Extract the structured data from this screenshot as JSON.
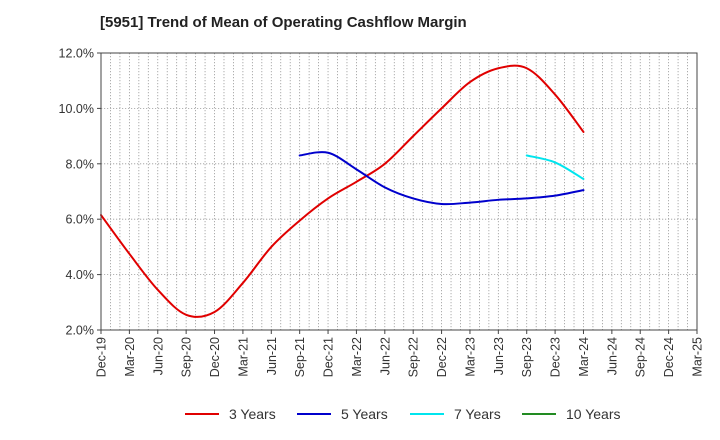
{
  "title": "[5951]  Trend of Mean of Operating Cashflow Margin",
  "chart_data": {
    "type": "line",
    "title": "[5951]  Trend of Mean of Operating Cashflow Margin",
    "xlabel": "",
    "ylabel": "",
    "categories": [
      "Dec-19",
      "Mar-20",
      "Jun-20",
      "Sep-20",
      "Dec-20",
      "Mar-21",
      "Jun-21",
      "Sep-21",
      "Dec-21",
      "Mar-22",
      "Jun-22",
      "Sep-22",
      "Dec-22",
      "Mar-23",
      "Jun-23",
      "Sep-23",
      "Dec-23",
      "Mar-24",
      "Jun-24",
      "Sep-24",
      "Dec-24",
      "Mar-25"
    ],
    "yticks": [
      "2.0%",
      "4.0%",
      "6.0%",
      "8.0%",
      "10.0%",
      "12.0%"
    ],
    "ylim": [
      2.0,
      12.0
    ],
    "grid": true,
    "legend_position": "bottom",
    "series": [
      {
        "name": "3 Years",
        "color": "#e00000",
        "values": [
          6.15,
          4.75,
          3.45,
          2.55,
          2.65,
          3.7,
          5.0,
          5.95,
          6.75,
          7.35,
          8.0,
          9.0,
          10.0,
          10.95,
          11.45,
          11.45,
          10.5,
          9.15,
          null,
          null,
          null,
          null
        ]
      },
      {
        "name": "5 Years",
        "color": "#0000cc",
        "values": [
          null,
          null,
          null,
          null,
          null,
          null,
          null,
          8.3,
          8.4,
          7.8,
          7.15,
          6.75,
          6.55,
          6.6,
          6.7,
          6.75,
          6.85,
          7.05,
          null,
          null,
          null,
          null
        ]
      },
      {
        "name": "7 Years",
        "color": "#00e5ee",
        "values": [
          null,
          null,
          null,
          null,
          null,
          null,
          null,
          null,
          null,
          null,
          null,
          null,
          null,
          null,
          null,
          8.3,
          8.05,
          7.45,
          null,
          null,
          null,
          null
        ]
      },
      {
        "name": "10 Years",
        "color": "#228b22",
        "values": [
          null,
          null,
          null,
          null,
          null,
          null,
          null,
          null,
          null,
          null,
          null,
          null,
          null,
          null,
          null,
          null,
          null,
          null,
          null,
          null,
          null,
          null
        ]
      }
    ]
  }
}
